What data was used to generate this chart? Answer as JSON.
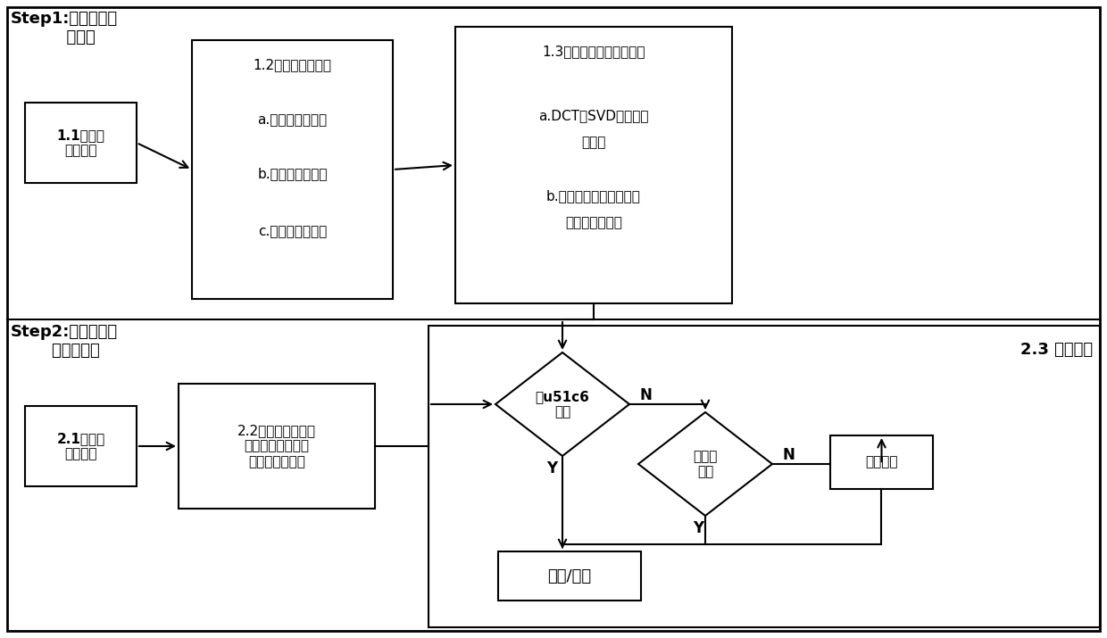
{
  "fig_width": 12.4,
  "fig_height": 7.15,
  "step1_label": "Step1:正常行为建\n      模阶段",
  "step2_label": "Step2:感知哈希入\n    侵检测阶段",
  "box_11_text": "1.1获取训\n练数据集",
  "box_12_title": "1.2流量特征图技术",
  "box_12_a": "a.属性信息熵计算",
  "box_12_b": "b.部分属性归一化",
  "box_12_c": "c.多元相关性分析",
  "box_13_title": "1.3图像感知哈希特征提取",
  "box_13_a": "a.DCT、SVD计算感知",
  "box_13_a2": "哈希码",
  "box_13_b": "b.遍历并构建正常和异常",
  "box_13_b2": "流量哈希摘要库",
  "box_21_text": "2.1获取实\n验数据集",
  "box_22_text": "2.2图像感知哈希提\n取技术获得流量特\n征图的哈希摘要",
  "diamond1_text": "精u51c6\n匹配",
  "diamond2_text": "汉明距\n匹配",
  "box_cluster_text": "聚类分析",
  "box_result_text": "正常/异常",
  "label_23": "2.3 入侵检测"
}
